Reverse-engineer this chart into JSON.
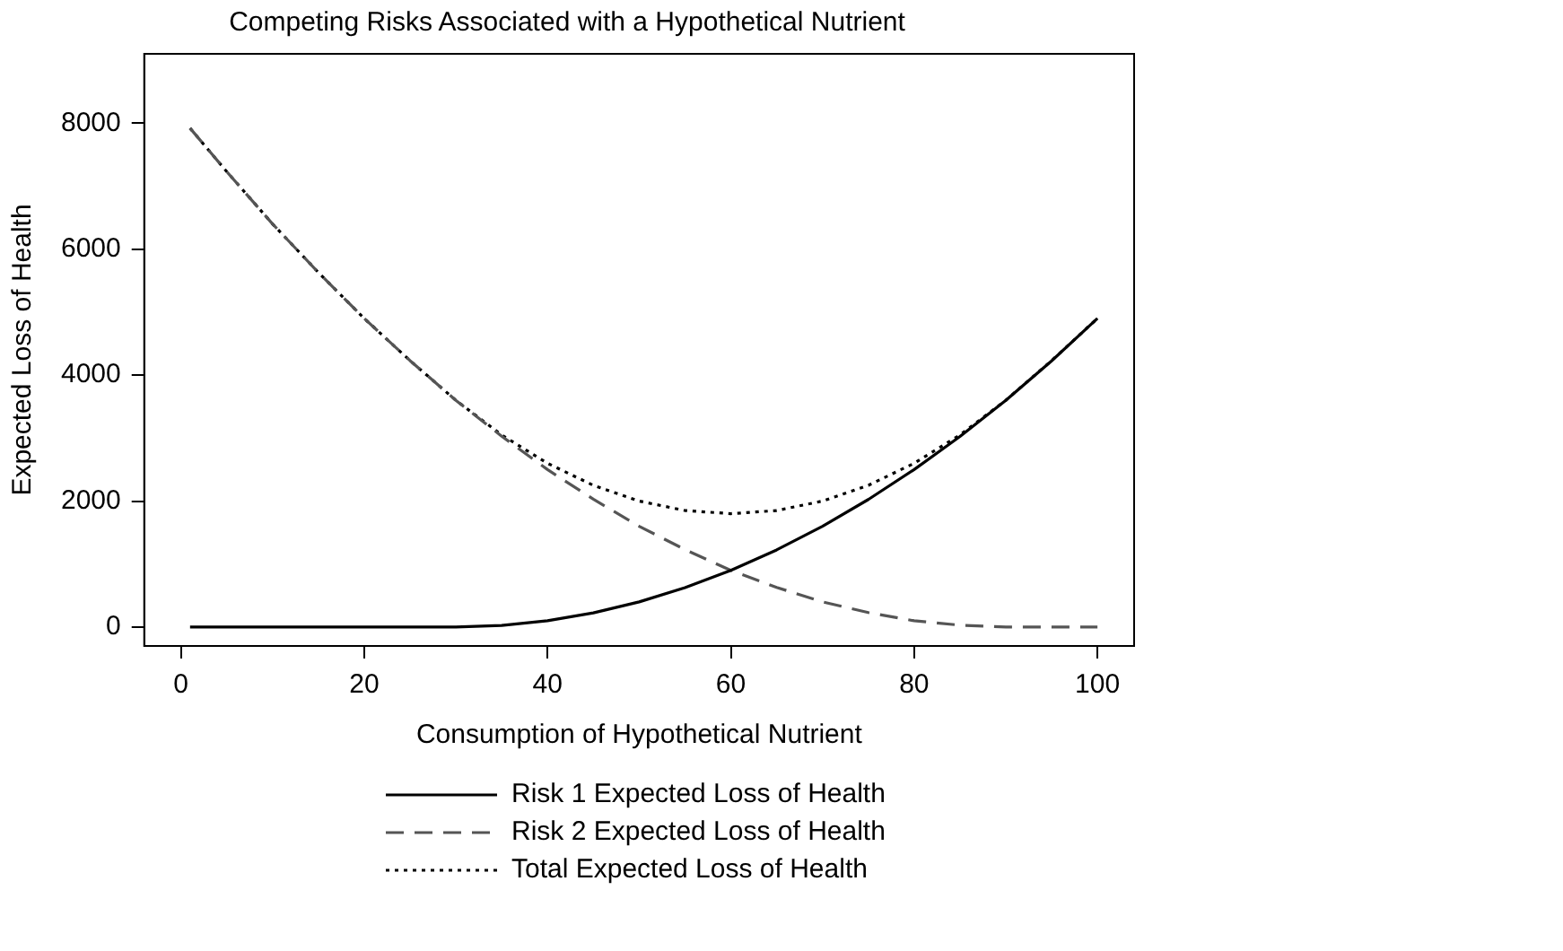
{
  "chart_data": {
    "type": "line",
    "title": "Competing Risks Associated with a Hypothetical Nutrient",
    "xlabel": "Consumption of Hypothetical Nutrient",
    "ylabel": "Expected Loss of Health",
    "x": [
      1,
      5,
      10,
      15,
      20,
      25,
      30,
      35,
      40,
      45,
      50,
      55,
      60,
      65,
      70,
      75,
      80,
      85,
      90,
      95,
      100
    ],
    "series": [
      {
        "name": "Risk 1 Expected Loss of Health",
        "color": "#000000",
        "line_style": "solid",
        "values": [
          0,
          0,
          0,
          0,
          0,
          0,
          0,
          25,
          100,
          225,
          400,
          625,
          900,
          1225,
          1600,
          2025,
          2500,
          3025,
          3600,
          4225,
          4900
        ]
      },
      {
        "name": "Risk 2 Expected Loss of Health",
        "color": "#555555",
        "line_style": "dashed",
        "values": [
          7920,
          7230,
          6400,
          5630,
          4900,
          4230,
          3600,
          3030,
          2500,
          2030,
          1600,
          1230,
          900,
          630,
          400,
          230,
          100,
          30,
          0,
          0,
          0
        ]
      },
      {
        "name": "Total Expected Loss of Health",
        "color": "#000000",
        "line_style": "dotted",
        "values": [
          7920,
          7230,
          6400,
          5630,
          4900,
          4230,
          3600,
          3050,
          2600,
          2250,
          2000,
          1850,
          1800,
          1850,
          2000,
          2250,
          2600,
          3050,
          3600,
          4230,
          4900
        ]
      }
    ],
    "xlim": [
      -4,
      104
    ],
    "xticks": [
      0,
      20,
      40,
      60,
      80,
      100
    ],
    "ylim": [
      -300,
      9100
    ],
    "yticks": [
      0,
      2000,
      4000,
      6000,
      8000
    ],
    "grid": false,
    "legend": "bottom",
    "marker": "none"
  }
}
